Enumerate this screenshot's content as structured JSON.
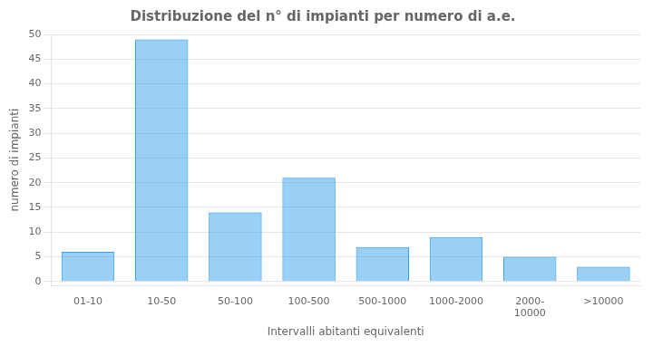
{
  "chart_data": {
    "type": "bar",
    "title": "Distribuzione del n° di impianti per numero di a.e.",
    "categories": [
      "01-10",
      "10-50",
      "50-100",
      "100-500",
      "500-1000",
      "1000-2000",
      "2000-\n10000",
      ">10000"
    ],
    "values": [
      6,
      49,
      14,
      21,
      7,
      9,
      5,
      3
    ],
    "xlabel": "Intervalli abitanti equivalenti",
    "ylabel": "numero di impianti",
    "ylim": [
      -0.8,
      50
    ],
    "yticks": [
      0,
      5,
      10,
      15,
      20,
      25,
      30,
      35,
      40,
      45,
      50
    ],
    "grid": true
  }
}
